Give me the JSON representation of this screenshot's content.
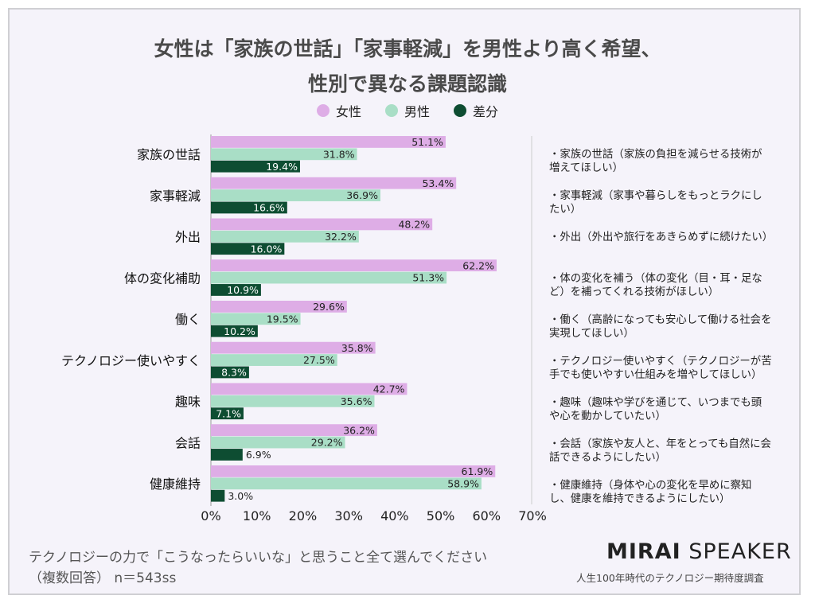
{
  "title_line1": "女性は「家族の世話」「家事軽減」を男性より高く希望、",
  "title_line2": "性別で異なる課題認識",
  "colors": {
    "female": "#deade6",
    "male": "#a9dec6",
    "diff": "#0e4d32",
    "background": "#f5f3fa"
  },
  "chart_data": {
    "type": "bar",
    "orientation": "horizontal",
    "categories": [
      "家族の世話",
      "家事軽減",
      "外出",
      "体の変化補助",
      "働く",
      "テクノロジー使いやすく",
      "趣味",
      "会話",
      "健康維持"
    ],
    "series": [
      {
        "name": "女性",
        "values": [
          51.1,
          53.4,
          48.2,
          62.2,
          29.6,
          35.8,
          42.7,
          36.2,
          61.9
        ]
      },
      {
        "name": "男性",
        "values": [
          31.8,
          36.9,
          32.2,
          51.3,
          19.5,
          27.5,
          35.6,
          29.2,
          58.9
        ]
      },
      {
        "name": "差分",
        "values": [
          19.4,
          16.6,
          16.0,
          10.9,
          10.2,
          8.3,
          7.1,
          6.9,
          3.0
        ]
      }
    ],
    "xlim": [
      0,
      70
    ],
    "xticks": [
      "0%",
      "10%",
      "20%",
      "30%",
      "40%",
      "50%",
      "60%",
      "70%"
    ],
    "legend": "top",
    "grid": false
  },
  "notes": [
    "・家族の世話（家族の負担を減らせる技術が増えてほしい）",
    "・家事軽減（家事や暮らしをもっとラクにしたい）",
    "・外出（外出や旅行をあきらめずに続けたい）",
    "・体の変化を補う（体の変化（目・耳・足など）を補ってくれる技術がほしい）",
    "・働く（高齢になっても安心して働ける社会を実現してほしい）",
    "・テクノロジー使いやすく（テクノロジーが苦手でも使いやすい仕組みを増やしてほしい）",
    "・趣味（趣味や学びを通じて、いつまでも頭や心を動かしていたい）",
    "・会話（家族や友人と、年をとっても自然に会話できるようにしたい）",
    "・健康維持（身体や心の変化を早めに察知し、健康を維持できるようにしたい）"
  ],
  "footer": {
    "question": "テクノロジーの力で「こうなったらいいな」と思うこと全て選んでください",
    "sample": "（複数回答） n＝543ss",
    "brand_bold": "MIRAI",
    "brand_light": "SPEAKER",
    "survey": "人生100年時代のテクノロジー期待度調査"
  }
}
